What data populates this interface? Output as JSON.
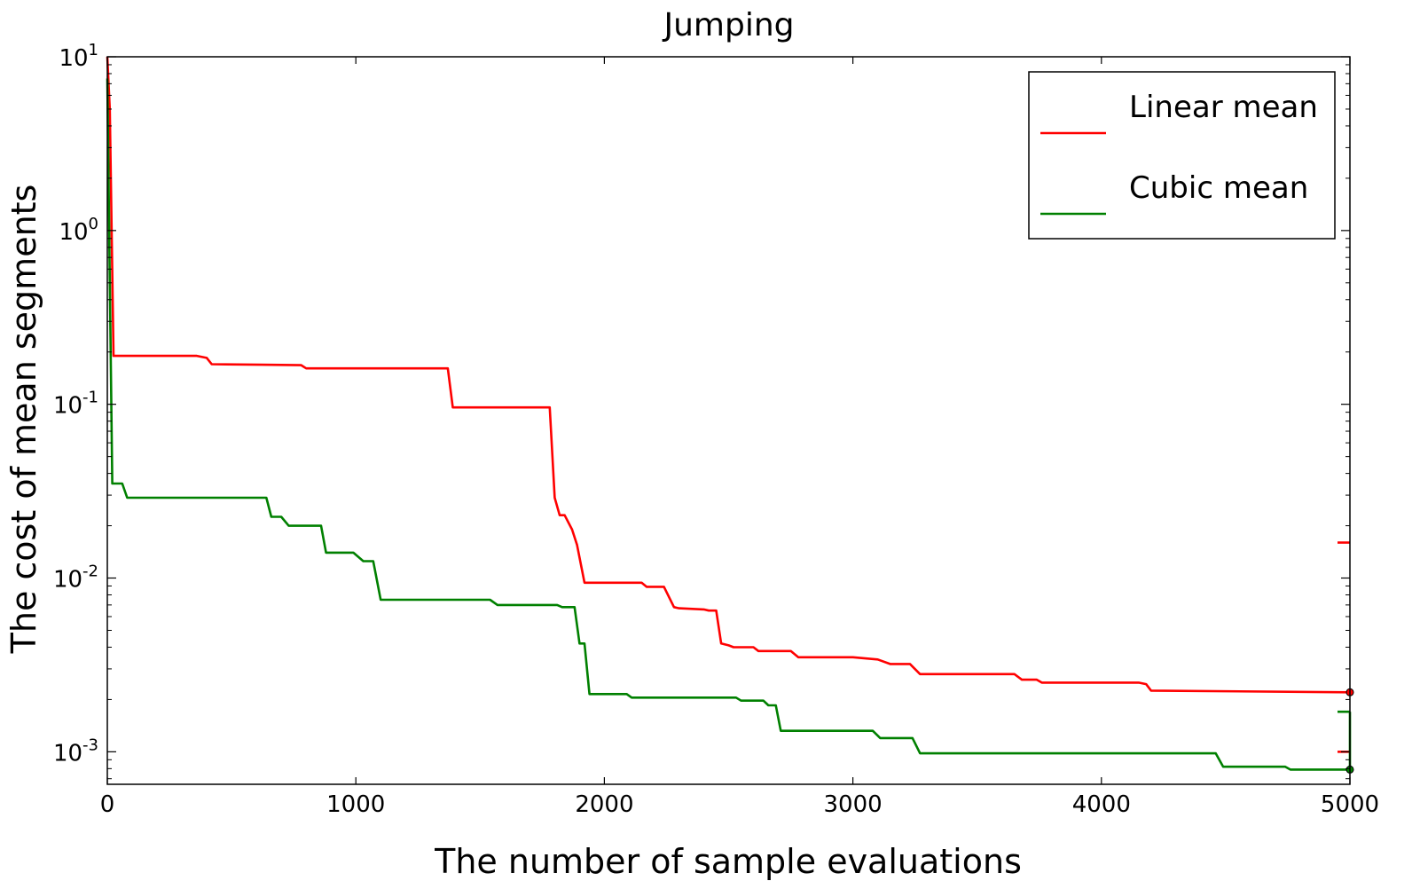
{
  "chart_data": {
    "type": "line",
    "title": "Jumping",
    "xlabel": "The number of sample evaluations",
    "ylabel": "The cost of mean segments",
    "xlim": [
      0,
      5000
    ],
    "ylim": [
      0.00065,
      10
    ],
    "yscale": "log",
    "grid": false,
    "legend_position": "top-right",
    "x_ticks": [
      0,
      1000,
      2000,
      3000,
      4000,
      5000
    ],
    "x_tick_labels": [
      "0",
      "1000",
      "2000",
      "3000",
      "4000",
      "5000"
    ],
    "y_ticks": [
      0.001,
      0.01,
      0.1,
      1,
      10
    ],
    "y_tick_labels": [
      {
        "base": "10",
        "exp": "-3"
      },
      {
        "base": "10",
        "exp": "-2"
      },
      {
        "base": "10",
        "exp": "-1"
      },
      {
        "base": "10",
        "exp": "0"
      },
      {
        "base": "10",
        "exp": "1"
      }
    ],
    "series": [
      {
        "name": "Linear mean",
        "color": "#ff0000",
        "x": [
          0,
          10,
          25,
          360,
          400,
          420,
          620,
          780,
          800,
          1370,
          1390,
          1780,
          1800,
          1820,
          1840,
          1870,
          1890,
          1920,
          2150,
          2170,
          2240,
          2280,
          2300,
          2400,
          2420,
          2450,
          2470,
          2500,
          2520,
          2600,
          2620,
          2750,
          2780,
          3000,
          3100,
          3150,
          3230,
          3270,
          3650,
          3680,
          3740,
          3760,
          4150,
          4180,
          4200,
          5000
        ],
        "y": [
          10,
          5,
          0.19,
          0.19,
          0.185,
          0.17,
          0.169,
          0.168,
          0.161,
          0.161,
          0.096,
          0.096,
          0.029,
          0.023,
          0.023,
          0.019,
          0.0155,
          0.0094,
          0.0094,
          0.0089,
          0.0089,
          0.0068,
          0.0067,
          0.0066,
          0.0065,
          0.0065,
          0.0042,
          0.0041,
          0.004,
          0.004,
          0.0038,
          0.0038,
          0.0035,
          0.0035,
          0.0034,
          0.0032,
          0.0032,
          0.0028,
          0.0028,
          0.0026,
          0.0026,
          0.0025,
          0.0025,
          0.00245,
          0.00225,
          0.0022
        ]
      },
      {
        "name": "Cubic mean",
        "color": "#008000",
        "x": [
          0,
          20,
          60,
          80,
          640,
          660,
          700,
          730,
          860,
          880,
          990,
          1030,
          1070,
          1100,
          1540,
          1570,
          1810,
          1830,
          1880,
          1900,
          1920,
          1940,
          2090,
          2110,
          2530,
          2550,
          2640,
          2660,
          2690,
          2710,
          3080,
          3110,
          3240,
          3270,
          3290,
          4460,
          4490,
          4740,
          4760,
          5000
        ],
        "y": [
          7.5,
          0.035,
          0.035,
          0.029,
          0.029,
          0.0225,
          0.0225,
          0.02,
          0.02,
          0.014,
          0.014,
          0.0125,
          0.0125,
          0.0075,
          0.0075,
          0.007,
          0.007,
          0.0068,
          0.0068,
          0.0042,
          0.0042,
          0.00215,
          0.00215,
          0.00205,
          0.00205,
          0.00197,
          0.00197,
          0.00185,
          0.00185,
          0.00132,
          0.00132,
          0.0012,
          0.0012,
          0.00098,
          0.00098,
          0.00098,
          0.00082,
          0.00082,
          0.00079,
          0.00079
        ]
      }
    ],
    "annotations": [
      {
        "kind": "tick",
        "color": "#ff0000",
        "x": [
          4950,
          5000
        ],
        "y": 0.016
      },
      {
        "kind": "tick",
        "color": "#ff0000",
        "x": [
          4950,
          5000
        ],
        "y": 0.001
      },
      {
        "kind": "tick",
        "color": "#008000",
        "x": [
          4950,
          5000
        ],
        "y": 0.0017
      },
      {
        "kind": "vline",
        "color": "#008000",
        "x": 5000,
        "y": [
          0.00079,
          0.0017
        ]
      },
      {
        "kind": "dot",
        "color": "#ff0000",
        "x": 5000,
        "y": 0.0022
      },
      {
        "kind": "dot",
        "color": "#008000",
        "x": 5000,
        "y": 0.00079
      }
    ]
  }
}
